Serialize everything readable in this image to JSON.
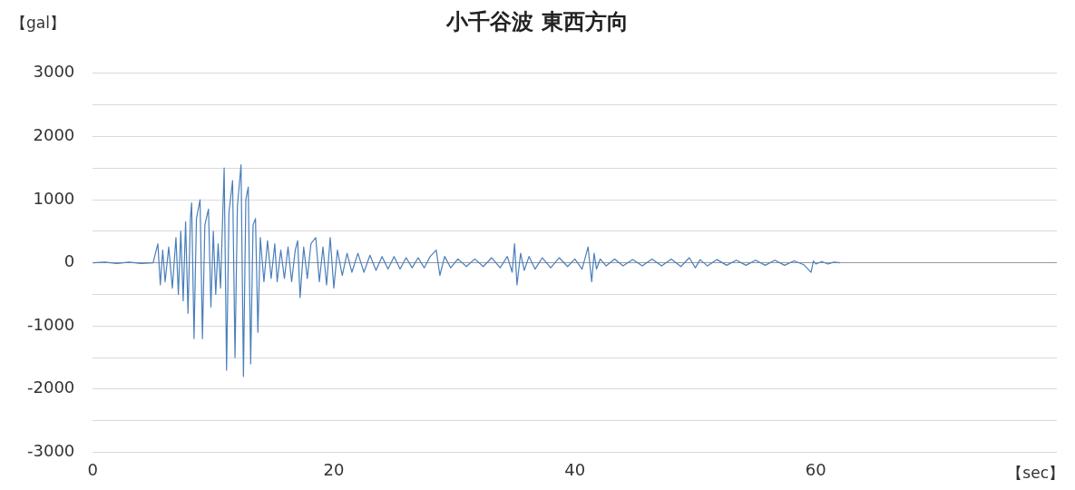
{
  "chart_data": {
    "type": "line",
    "title": "小千谷波 東西方向",
    "ylabel": "【gal】",
    "xlabel": "【sec】",
    "xlim": [
      0,
      80
    ],
    "xticks": [
      0,
      20,
      40,
      60
    ],
    "ylim": [
      -3000,
      3000
    ],
    "yticks": [
      -3000,
      {
        "value": -2500,
        "label": null
      },
      -2000,
      {
        "value": -1500,
        "label": null
      },
      -1000,
      {
        "value": -500,
        "label": null
      },
      0,
      {
        "value": 500,
        "label": null
      },
      1000,
      {
        "value": 1500,
        "label": null
      },
      2000,
      {
        "value": 2500,
        "label": null
      },
      3000
    ],
    "grid": "y",
    "legend": false,
    "marker": "none",
    "line_style": "solid",
    "series": [
      {
        "color": "#4a7ebb",
        "x": [
          0,
          1,
          2,
          3,
          4,
          5,
          5.4,
          5.6,
          5.8,
          6.0,
          6.3,
          6.6,
          6.9,
          7.1,
          7.3,
          7.5,
          7.7,
          7.9,
          8.1,
          8.2,
          8.4,
          8.6,
          8.9,
          9.1,
          9.3,
          9.6,
          9.8,
          10.0,
          10.2,
          10.4,
          10.6,
          10.9,
          11.1,
          11.3,
          11.6,
          11.8,
          12.0,
          12.3,
          12.5,
          12.7,
          12.9,
          13.1,
          13.3,
          13.5,
          13.7,
          13.9,
          14.2,
          14.5,
          14.8,
          15.1,
          15.3,
          15.6,
          15.9,
          16.2,
          16.5,
          16.8,
          17.0,
          17.2,
          17.5,
          17.8,
          18.1,
          18.5,
          18.8,
          19.1,
          19.4,
          19.7,
          20.0,
          20.3,
          20.7,
          21.1,
          21.5,
          22.0,
          22.5,
          23.0,
          23.5,
          24.0,
          24.5,
          25.0,
          25.5,
          26.0,
          26.5,
          27.0,
          27.5,
          28.0,
          28.5,
          28.8,
          29.2,
          29.7,
          30.3,
          31.0,
          31.7,
          32.4,
          33.1,
          33.8,
          34.4,
          34.8,
          35.0,
          35.2,
          35.5,
          35.8,
          36.2,
          36.7,
          37.3,
          38.0,
          38.7,
          39.4,
          40.0,
          40.6,
          41.1,
          41.4,
          41.6,
          41.8,
          42.1,
          42.6,
          43.3,
          44.0,
          44.8,
          45.6,
          46.4,
          47.2,
          48.0,
          48.8,
          49.5,
          50.0,
          50.4,
          51.0,
          51.8,
          52.6,
          53.4,
          54.2,
          55.0,
          55.8,
          56.6,
          57.4,
          58.2,
          59.0,
          59.6,
          59.8,
          60.0,
          60.5,
          61.0,
          61.5,
          62.0
        ],
        "values": [
          0,
          10,
          -10,
          10,
          -10,
          0,
          300,
          -350,
          200,
          -300,
          250,
          -400,
          400,
          -500,
          500,
          -600,
          650,
          -800,
          700,
          950,
          -1200,
          700,
          1000,
          -1200,
          600,
          850,
          -700,
          500,
          -500,
          300,
          -400,
          1500,
          -1700,
          800,
          1300,
          -1500,
          900,
          1550,
          -1800,
          1000,
          1200,
          -1600,
          600,
          700,
          -1100,
          400,
          -300,
          350,
          -250,
          300,
          -300,
          200,
          -250,
          250,
          -300,
          200,
          350,
          -550,
          250,
          -250,
          300,
          400,
          -300,
          250,
          -350,
          400,
          -400,
          200,
          -200,
          150,
          -150,
          150,
          -150,
          120,
          -120,
          100,
          -100,
          100,
          -100,
          80,
          -80,
          80,
          -80,
          100,
          200,
          -200,
          100,
          -80,
          60,
          -60,
          60,
          -60,
          80,
          -80,
          100,
          -150,
          300,
          -350,
          150,
          -120,
          100,
          -100,
          80,
          -80,
          80,
          -60,
          60,
          -100,
          250,
          -300,
          150,
          -100,
          60,
          -50,
          60,
          -50,
          50,
          -50,
          60,
          -50,
          60,
          -60,
          80,
          -80,
          50,
          -50,
          50,
          -40,
          40,
          -40,
          40,
          -40,
          40,
          -40,
          30,
          -30,
          -150,
          30,
          -20,
          20,
          -20,
          10,
          0
        ]
      }
    ]
  }
}
